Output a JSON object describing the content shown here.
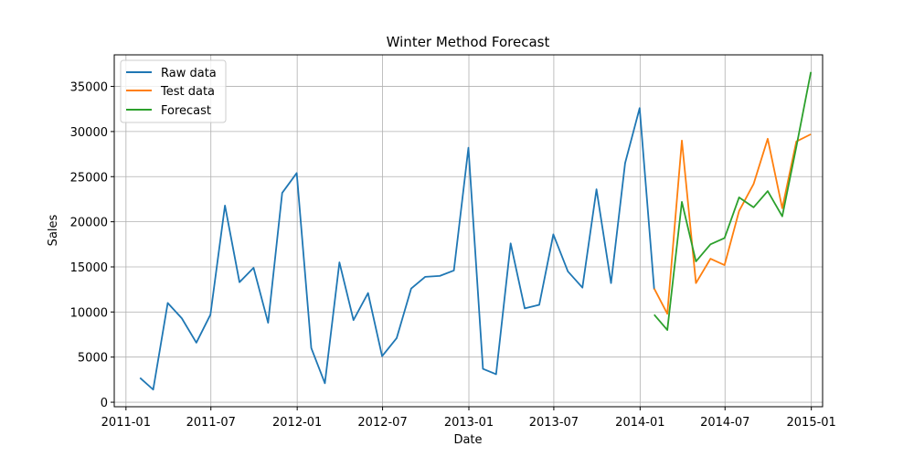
{
  "chart_data": {
    "type": "line",
    "title": "Winter Method Forecast",
    "xlabel": "Date",
    "ylabel": "Sales",
    "xlim": [
      "2010-12-07",
      "2015-01-25"
    ],
    "ylim": [
      -500,
      38500
    ],
    "grid": true,
    "legend": "top-left",
    "x_ticks": [
      {
        "date": "2011-01-01",
        "label": "2011-01"
      },
      {
        "date": "2011-07-01",
        "label": "2011-07"
      },
      {
        "date": "2012-01-01",
        "label": "2012-01"
      },
      {
        "date": "2012-07-01",
        "label": "2012-07"
      },
      {
        "date": "2013-01-01",
        "label": "2013-01"
      },
      {
        "date": "2013-07-01",
        "label": "2013-07"
      },
      {
        "date": "2014-01-01",
        "label": "2014-01"
      },
      {
        "date": "2014-07-01",
        "label": "2014-07"
      },
      {
        "date": "2015-01-01",
        "label": "2015-01"
      }
    ],
    "y_ticks": [
      {
        "value": 0,
        "label": "0"
      },
      {
        "value": 5000,
        "label": "5000"
      },
      {
        "value": 10000,
        "label": "10000"
      },
      {
        "value": 15000,
        "label": "15000"
      },
      {
        "value": 20000,
        "label": "20000"
      },
      {
        "value": 25000,
        "label": "25000"
      },
      {
        "value": 30000,
        "label": "30000"
      },
      {
        "value": 35000,
        "label": "35000"
      }
    ],
    "series": [
      {
        "name": "Raw data",
        "color": "#1f77b4",
        "points": [
          [
            "2011-01-31",
            2700
          ],
          [
            "2011-02-28",
            1400
          ],
          [
            "2011-03-31",
            11000
          ],
          [
            "2011-04-30",
            9300
          ],
          [
            "2011-05-31",
            6600
          ],
          [
            "2011-06-30",
            9700
          ],
          [
            "2011-07-31",
            21800
          ],
          [
            "2011-08-31",
            13300
          ],
          [
            "2011-09-30",
            14900
          ],
          [
            "2011-10-31",
            8800
          ],
          [
            "2011-11-30",
            23200
          ],
          [
            "2011-12-31",
            25400
          ],
          [
            "2012-01-31",
            6000
          ],
          [
            "2012-02-29",
            2100
          ],
          [
            "2012-03-31",
            15500
          ],
          [
            "2012-04-30",
            9100
          ],
          [
            "2012-05-31",
            12100
          ],
          [
            "2012-06-30",
            5100
          ],
          [
            "2012-07-31",
            7100
          ],
          [
            "2012-08-31",
            12600
          ],
          [
            "2012-09-30",
            13900
          ],
          [
            "2012-10-31",
            14000
          ],
          [
            "2012-11-30",
            14600
          ],
          [
            "2012-12-31",
            28200
          ],
          [
            "2013-01-31",
            3700
          ],
          [
            "2013-02-28",
            3100
          ],
          [
            "2013-03-31",
            17600
          ],
          [
            "2013-04-30",
            10400
          ],
          [
            "2013-05-31",
            10800
          ],
          [
            "2013-06-30",
            18600
          ],
          [
            "2013-07-31",
            14500
          ],
          [
            "2013-08-31",
            12700
          ],
          [
            "2013-09-30",
            23600
          ],
          [
            "2013-10-31",
            13200
          ],
          [
            "2013-11-30",
            26500
          ],
          [
            "2013-12-31",
            32600
          ],
          [
            "2014-01-31",
            12500
          ]
        ]
      },
      {
        "name": "Test data",
        "color": "#ff7f0e",
        "points": [
          [
            "2014-01-31",
            12600
          ],
          [
            "2014-02-28",
            9800
          ],
          [
            "2014-03-31",
            29000
          ],
          [
            "2014-04-30",
            13200
          ],
          [
            "2014-05-31",
            15900
          ],
          [
            "2014-06-30",
            15200
          ],
          [
            "2014-07-31",
            21200
          ],
          [
            "2014-08-31",
            24200
          ],
          [
            "2014-09-30",
            29200
          ],
          [
            "2014-10-31",
            21500
          ],
          [
            "2014-11-30",
            28900
          ],
          [
            "2014-12-31",
            29700
          ]
        ]
      },
      {
        "name": "Forecast",
        "color": "#2ca02c",
        "points": [
          [
            "2014-01-31",
            9700
          ],
          [
            "2014-02-28",
            8000
          ],
          [
            "2014-03-31",
            22200
          ],
          [
            "2014-04-30",
            15600
          ],
          [
            "2014-05-31",
            17500
          ],
          [
            "2014-06-30",
            18200
          ],
          [
            "2014-07-31",
            22700
          ],
          [
            "2014-08-31",
            21600
          ],
          [
            "2014-09-30",
            23400
          ],
          [
            "2014-10-31",
            20600
          ],
          [
            "2014-11-30",
            28300
          ],
          [
            "2014-12-31",
            36600
          ]
        ]
      }
    ]
  }
}
